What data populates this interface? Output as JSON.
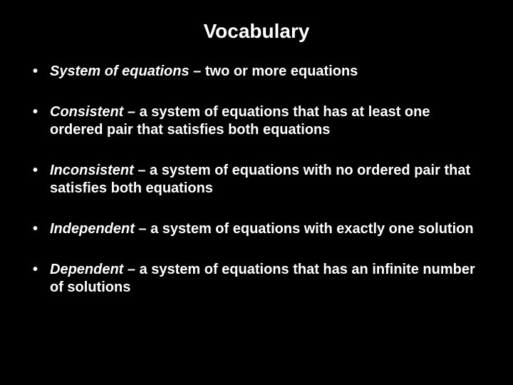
{
  "slide": {
    "title": "Vocabulary",
    "background_color": "#000000",
    "text_color": "#ffffff",
    "title_fontsize": 28,
    "body_fontsize": 20,
    "bullets": [
      {
        "term": "System of equations",
        "definition": " – two or more equations"
      },
      {
        "term": "Consistent",
        "definition": " – a system of equations that has at least one ordered pair that satisfies both equations"
      },
      {
        "term": "Inconsistent",
        "definition": " – a system of equations with no ordered pair that satisfies both equations"
      },
      {
        "term": "Independent",
        "definition": " – a system of equations with exactly one solution"
      },
      {
        "term": "Dependent",
        "definition": " – a system of equations that has an infinite number of solutions"
      }
    ]
  }
}
